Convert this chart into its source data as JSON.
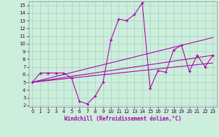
{
  "xlabel": "Windchill (Refroidissement éolien,°C)",
  "bg_color": "#cceedd",
  "grid_color": "#aaccbb",
  "line_color": "#aa00aa",
  "xlim": [
    -0.5,
    23.5
  ],
  "ylim": [
    1.8,
    15.5
  ],
  "xticks": [
    0,
    1,
    2,
    3,
    4,
    5,
    6,
    7,
    8,
    9,
    10,
    11,
    12,
    13,
    14,
    15,
    16,
    17,
    18,
    19,
    20,
    21,
    22,
    23
  ],
  "yticks": [
    2,
    3,
    4,
    5,
    6,
    7,
    8,
    9,
    10,
    11,
    12,
    13,
    14,
    15
  ],
  "series1_x": [
    0,
    1,
    2,
    3,
    4,
    5,
    6,
    7,
    8,
    9,
    10,
    11,
    12,
    13,
    14,
    15,
    16,
    17,
    18,
    19,
    20,
    21,
    22,
    23
  ],
  "series1_y": [
    5.0,
    6.2,
    6.2,
    6.2,
    6.2,
    5.5,
    2.5,
    2.2,
    3.2,
    5.0,
    10.5,
    13.2,
    13.0,
    13.8,
    15.3,
    4.2,
    6.5,
    6.3,
    9.2,
    9.8,
    6.4,
    8.5,
    7.0,
    8.5
  ],
  "trend1_x": [
    0,
    23
  ],
  "trend1_y": [
    5.0,
    7.5
  ],
  "trend2_x": [
    0,
    23
  ],
  "trend2_y": [
    5.0,
    8.5
  ],
  "trend3_x": [
    0,
    23
  ],
  "trend3_y": [
    5.0,
    10.8
  ]
}
